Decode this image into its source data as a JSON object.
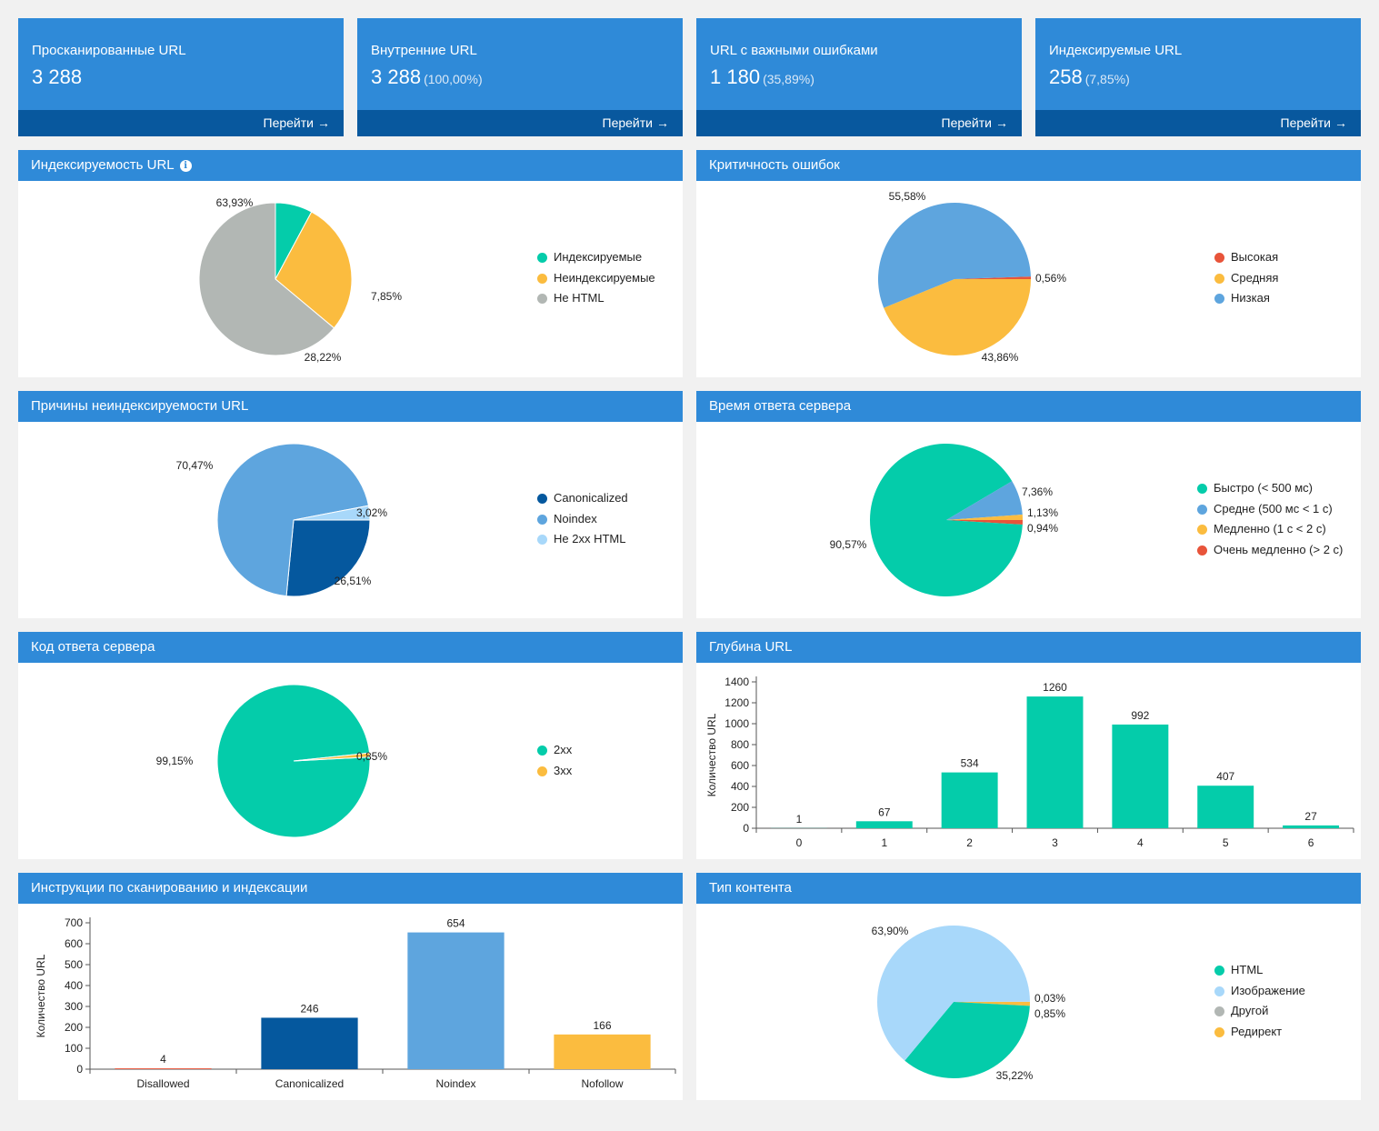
{
  "cards": [
    {
      "title": "Просканированные URL",
      "value": "3 288",
      "pct": "",
      "link": "Перейти"
    },
    {
      "title": "Внутренние URL",
      "value": "3 288",
      "pct": "(100,00%)",
      "link": "Перейти"
    },
    {
      "title": "URL с важными ошибками",
      "value": "1 180",
      "pct": "(35,89%)",
      "link": "Перейти"
    },
    {
      "title": "Индексируемые URL",
      "value": "258",
      "pct": "(7,85%)",
      "link": "Перейти"
    }
  ],
  "link_arrow": "→",
  "info_icon": "i",
  "colors": {
    "teal": "#04ccaa",
    "yellow": "#fbbc3f",
    "gray": "#b2b7b4",
    "red": "#e8543a",
    "blue": "#5ea5de",
    "navy": "#05589e",
    "lightblue": "#a8d8fa",
    "header": "#2f8ad8"
  },
  "panels": {
    "indexability": {
      "title": "Индексируемость URL",
      "legend": [
        {
          "label": "Индексируемые",
          "color": "#04ccaa"
        },
        {
          "label": "Неиндексируемые",
          "color": "#fbbc3f"
        },
        {
          "label": "Не HTML",
          "color": "#b2b7b4"
        }
      ],
      "chart_data": {
        "type": "pie",
        "slices": [
          {
            "label": "Индексируемые",
            "value": 7.85,
            "text": "7,85%",
            "color": "#04ccaa"
          },
          {
            "label": "Неиндексируемые",
            "value": 28.22,
            "text": "28,22%",
            "color": "#fbbc3f"
          },
          {
            "label": "Не HTML",
            "value": 63.93,
            "text": "63,93%",
            "color": "#b2b7b4"
          }
        ]
      }
    },
    "severity": {
      "title": "Критичность ошибок",
      "legend": [
        {
          "label": "Высокая",
          "color": "#e8543a"
        },
        {
          "label": "Средняя",
          "color": "#fbbc3f"
        },
        {
          "label": "Низкая",
          "color": "#5ea5de"
        }
      ],
      "chart_data": {
        "type": "pie",
        "slices": [
          {
            "label": "Высокая",
            "value": 0.56,
            "text": "0,56%",
            "color": "#e8543a"
          },
          {
            "label": "Средняя",
            "value": 43.86,
            "text": "43,86%",
            "color": "#fbbc3f"
          },
          {
            "label": "Низкая",
            "value": 55.58,
            "text": "55,58%",
            "color": "#5ea5de"
          }
        ]
      }
    },
    "nonindex_reasons": {
      "title": "Причины неиндексируемости URL",
      "legend": [
        {
          "label": "Canonicalized",
          "color": "#05589e"
        },
        {
          "label": "Noindex",
          "color": "#5ea5de"
        },
        {
          "label": "Не 2xx HTML",
          "color": "#a8d8fa"
        }
      ],
      "chart_data": {
        "type": "pie",
        "slices": [
          {
            "label": "Canonicalized",
            "value": 26.51,
            "text": "26,51%",
            "color": "#05589e"
          },
          {
            "label": "Noindex",
            "value": 70.47,
            "text": "70,47%",
            "color": "#5ea5de"
          },
          {
            "label": "Не 2xx HTML",
            "value": 3.02,
            "text": "3,02%",
            "color": "#a8d8fa"
          }
        ]
      }
    },
    "response_time": {
      "title": "Время ответа сервера",
      "legend": [
        {
          "label": "Быстро (< 500 мс)",
          "color": "#04ccaa"
        },
        {
          "label": "Средне (500 мс < 1 с)",
          "color": "#5ea5de"
        },
        {
          "label": "Медленно (1 с < 2 с)",
          "color": "#fbbc3f"
        },
        {
          "label": "Очень медленно (> 2 с)",
          "color": "#e8543a"
        }
      ],
      "chart_data": {
        "type": "pie",
        "slices": [
          {
            "label": "Очень медленно (> 2 с)",
            "value": 0.94,
            "text": "0,94%",
            "color": "#e8543a"
          },
          {
            "label": "Быстро (< 500 мс)",
            "value": 90.57,
            "text": "90,57%",
            "color": "#04ccaa"
          },
          {
            "label": "Средне (500 мс < 1 с)",
            "value": 7.36,
            "text": "7,36%",
            "color": "#5ea5de"
          },
          {
            "label": "Медленно (1 с < 2 с)",
            "value": 1.13,
            "text": "1,13%",
            "color": "#fbbc3f"
          }
        ]
      }
    },
    "status_code": {
      "title": "Код ответа сервера",
      "legend": [
        {
          "label": "2xx",
          "color": "#04ccaa"
        },
        {
          "label": "3xx",
          "color": "#fbbc3f"
        }
      ],
      "chart_data": {
        "type": "pie",
        "slices": [
          {
            "label": "2xx",
            "value": 99.15,
            "text": "99,15%",
            "color": "#04ccaa"
          },
          {
            "label": "3xx",
            "value": 0.85,
            "text": "0,85%",
            "color": "#fbbc3f"
          }
        ]
      }
    },
    "url_depth": {
      "title": "Глубина URL",
      "chart_data": {
        "type": "bar",
        "categories": [
          "0",
          "1",
          "2",
          "3",
          "4",
          "5",
          "6"
        ],
        "values": [
          1,
          67,
          534,
          1260,
          992,
          407,
          27
        ],
        "ylabel": "Количество URL",
        "ylim": [
          0,
          1400
        ],
        "yticks": [
          0,
          200,
          400,
          600,
          800,
          1000,
          1200,
          1400
        ],
        "colors": [
          "#04ccaa"
        ]
      }
    },
    "crawl_instructions": {
      "title": "Инструкции по сканированию и индексации",
      "chart_data": {
        "type": "bar",
        "categories": [
          "Disallowed",
          "Canonicalized",
          "Noindex",
          "Nofollow"
        ],
        "values": [
          4,
          246,
          654,
          166
        ],
        "ylabel": "Количество URL",
        "ylim": [
          0,
          700
        ],
        "yticks": [
          0,
          100,
          200,
          300,
          400,
          500,
          600,
          700
        ],
        "colors": [
          "#e8543a",
          "#05589e",
          "#5ea5de",
          "#fbbc3f"
        ]
      }
    },
    "content_type": {
      "title": "Тип контента",
      "legend": [
        {
          "label": "HTML",
          "color": "#04ccaa"
        },
        {
          "label": "Изображение",
          "color": "#a8d8fa"
        },
        {
          "label": "Другой",
          "color": "#b2b7b4"
        },
        {
          "label": "Редирект",
          "color": "#fbbc3f"
        }
      ],
      "chart_data": {
        "type": "pie",
        "slices": [
          {
            "label": "Другой",
            "value": 0.03,
            "text": "0,03%",
            "color": "#b2b7b4"
          },
          {
            "label": "Редирект",
            "value": 0.85,
            "text": "0,85%",
            "color": "#fbbc3f"
          },
          {
            "label": "HTML",
            "value": 35.22,
            "text": "35,22%",
            "color": "#04ccaa"
          },
          {
            "label": "Изображение",
            "value": 63.9,
            "text": "63,90%",
            "color": "#a8d8fa"
          }
        ]
      }
    }
  }
}
